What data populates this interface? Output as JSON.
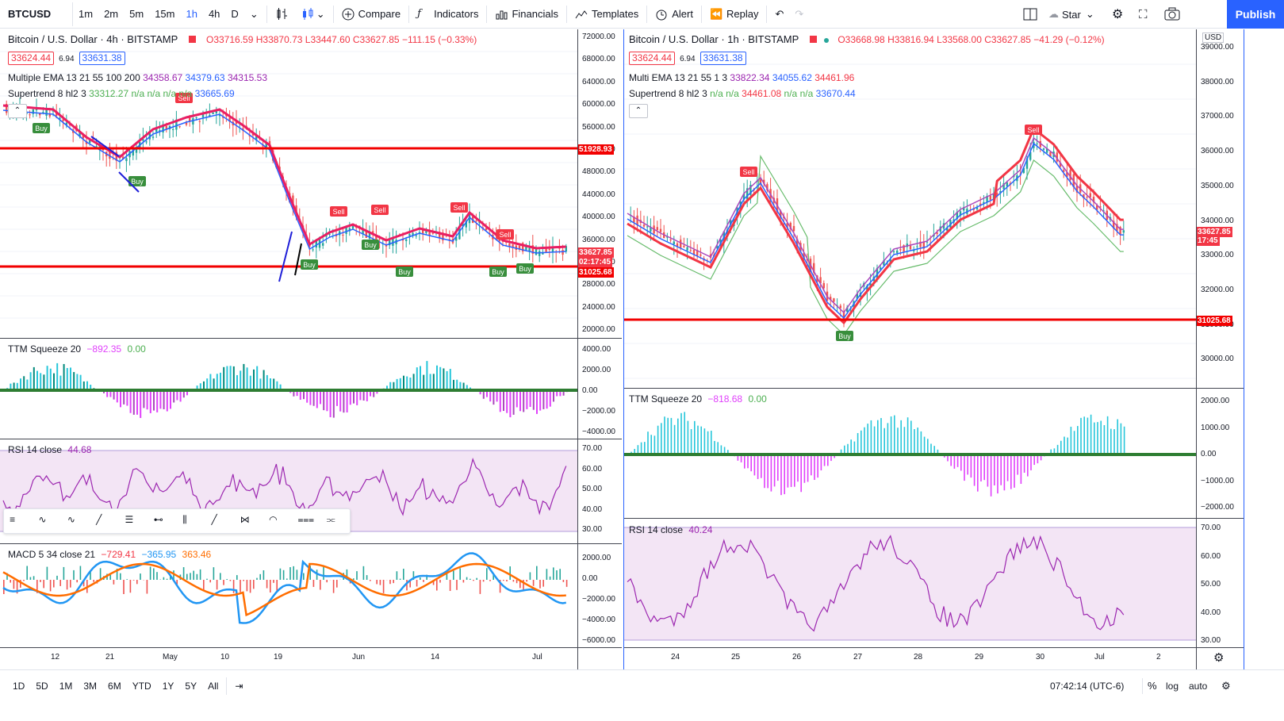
{
  "toolbar": {
    "symbol": "BTCUSD",
    "intervals": [
      "1m",
      "2m",
      "5m",
      "15m",
      "1h",
      "4h",
      "D"
    ],
    "selected_interval": "1h",
    "compare": "Compare",
    "indicators": "Indicators",
    "financials": "Financials",
    "templates": "Templates",
    "alert": "Alert",
    "replay": "Replay",
    "star": "Star",
    "publish": "Publish"
  },
  "left": {
    "title": "Bitcoin / U.S. Dollar · 4h · BITSTAMP",
    "ohlc": {
      "o": "O33716.59",
      "h": "H33870.73",
      "l": "L33447.60",
      "c": "C33627.85",
      "chg": "−111.15 (−0.33%)"
    },
    "bid": "33624.44",
    "spread": "6.94",
    "ask": "33631.38",
    "ema_label": "Multiple EMA 13 21 55 100 200",
    "ema_vals": [
      "34358.67",
      "34379.63",
      "34315.53"
    ],
    "st_label": "Supertrend 8 hl2 3",
    "st_vals": "33312.27  n/a  n/a  n/a  n/a",
    "st_last": "33665.69",
    "price_axis": [
      "72000.00",
      "68000.00",
      "64000.00",
      "60000.00",
      "56000.00",
      "52000.00",
      "48000.00",
      "44000.00",
      "40000.00",
      "36000.00",
      "32000.00",
      "28000.00",
      "24000.00",
      "20000.00"
    ],
    "line1": "51928.93",
    "line2": "31025.68",
    "last_price": "33627.85",
    "last_time": "02:17:45",
    "ttm_label": "TTM Squeeze 20",
    "ttm_v1": "−892.35",
    "ttm_v2": "0.00",
    "ttm_axis": [
      "4000.00",
      "2000.00",
      "0.00",
      "−2000.00",
      "−4000.00"
    ],
    "rsi_label": "RSI 14 close",
    "rsi_v": "44.68",
    "rsi_axis": [
      "70.00",
      "60.00",
      "50.00",
      "40.00",
      "30.00"
    ],
    "macd_label": "MACD 5 34 close 21",
    "macd_v": [
      "−729.41",
      "−365.95",
      "363.46"
    ],
    "macd_axis": [
      "2000.00",
      "0.00",
      "−2000.00",
      "−4000.00",
      "−6000.00"
    ],
    "x_axis": [
      "12",
      "21",
      "May",
      "10",
      "19",
      "Jun",
      "14",
      "Jul"
    ],
    "wave_labels": [
      "Buy",
      "Buy",
      "Buy",
      "Buy",
      "Buy",
      "Buy",
      "Buy",
      "Sell",
      "Sell",
      "Sell",
      "Sell",
      "Sell"
    ]
  },
  "right": {
    "title": "Bitcoin / U.S. Dollar · 1h · BITSTAMP",
    "ohlc": {
      "o": "O33668.98",
      "h": "H33816.94",
      "l": "L33568.00",
      "c": "C33627.85",
      "chg": "−41.29 (−0.12%)"
    },
    "bid": "33624.44",
    "spread": "6.94",
    "ask": "33631.38",
    "ema_label": "Multi EMA 13 21 55 1 3",
    "ema_vals": [
      "33822.34",
      "34055.62",
      "34461.96"
    ],
    "st_label": "Supertrend 8 hl2 3",
    "st_vals": "n/a  n/a",
    "st_v1": "34461.08",
    "st_vals2": "n/a  n/a",
    "st_last": "33670.44",
    "currency": "USD",
    "price_axis": [
      "39000.00",
      "38000.00",
      "37000.00",
      "36000.00",
      "35000.00",
      "34000.00",
      "33000.00",
      "32000.00",
      "31000.00",
      "30000.00"
    ],
    "line1": "31025.68",
    "last_price": "33627.85",
    "last_time": "17:45",
    "ttm_label": "TTM Squeeze 20",
    "ttm_v1": "−818.68",
    "ttm_v2": "0.00",
    "ttm_axis": [
      "2000.00",
      "1000.00",
      "0.00",
      "−1000.00",
      "−2000.00"
    ],
    "rsi_label": "RSI 14 close",
    "rsi_v": "40.24",
    "rsi_axis": [
      "70.00",
      "60.00",
      "50.00",
      "40.00",
      "30.00"
    ],
    "x_axis": [
      "24",
      "25",
      "26",
      "27",
      "28",
      "29",
      "30",
      "Jul",
      "2"
    ],
    "sell": "Sell",
    "buy": "Buy"
  },
  "bottom": {
    "ranges": [
      "1D",
      "5D",
      "1M",
      "3M",
      "6M",
      "YTD",
      "1Y",
      "5Y",
      "All"
    ],
    "time": "07:42:14 (UTC-6)",
    "percent": "%",
    "log": "log",
    "auto": "auto"
  },
  "colors": {
    "accent": "#2962ff",
    "up": "#26a69a",
    "down": "#ef5350",
    "red_line": "#f20000",
    "ema_pink": "#e91e63",
    "ema_blue": "#2962ff",
    "st_green": "#4caf50",
    "rsi_purple": "#9c27b0",
    "rsi_band": "#f3e5f5",
    "ttm_cyan": "#26c6da",
    "ttm_mag": "#e040fb",
    "macd_blue": "#2196f3",
    "macd_orange": "#ff6d00"
  }
}
